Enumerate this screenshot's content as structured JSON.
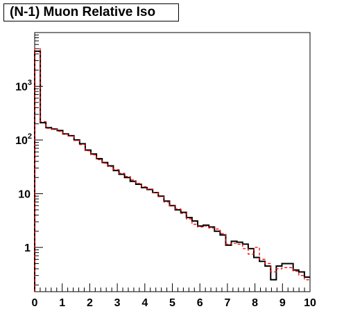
{
  "title": "(N-1) Muon Relative Iso",
  "chart_data": {
    "type": "line",
    "title": "(N-1) Muon Relative Iso",
    "xlabel": "",
    "ylabel": "",
    "xlim": [
      0,
      10
    ],
    "ylim": [
      0.15,
      10000
    ],
    "y_scale": "log",
    "grid": false,
    "x_ticks": [
      {
        "value": 0,
        "label": "0"
      },
      {
        "value": 1,
        "label": "1"
      },
      {
        "value": 2,
        "label": "2"
      },
      {
        "value": 3,
        "label": "3"
      },
      {
        "value": 4,
        "label": "4"
      },
      {
        "value": 5,
        "label": "5"
      },
      {
        "value": 6,
        "label": "6"
      },
      {
        "value": 7,
        "label": "7"
      },
      {
        "value": 8,
        "label": "8"
      },
      {
        "value": 9,
        "label": "9"
      },
      {
        "value": 10,
        "label": "10"
      }
    ],
    "y_ticks": [
      {
        "value": 1,
        "base": "1",
        "exp": ""
      },
      {
        "value": 10,
        "base": "10",
        "exp": ""
      },
      {
        "value": 100,
        "base": "10",
        "exp": "2"
      },
      {
        "value": 1000,
        "base": "10",
        "exp": "3"
      }
    ],
    "series": [
      {
        "style": "solid",
        "color": "#000000",
        "values": [
          4500,
          210,
          170,
          160,
          150,
          130,
          120,
          100,
          85,
          65,
          55,
          45,
          38,
          33,
          27,
          23,
          20,
          17,
          15,
          13,
          12,
          10.5,
          9,
          7.3,
          6,
          5,
          4.5,
          3.6,
          3.1,
          2.5,
          2.6,
          2.4,
          2.0,
          1.7,
          1.1,
          1.3,
          1.25,
          1.15,
          0.95,
          0.65,
          0.55,
          0.45,
          0.25,
          0.45,
          0.5,
          0.5,
          0.38,
          0.35,
          0.28
        ]
      },
      {
        "style": "dashed",
        "color": "#ff0000",
        "values": [
          5000,
          220,
          165,
          158,
          145,
          128,
          118,
          98,
          82,
          63,
          53,
          43,
          37,
          32,
          28,
          24,
          21,
          18,
          15.5,
          13.5,
          12.2,
          10.4,
          8.8,
          7.0,
          5.9,
          5.2,
          4.3,
          3.4,
          2.7,
          2.4,
          2.5,
          2.3,
          2.2,
          1.8,
          1.15,
          1.2,
          1.15,
          0.95,
          0.75,
          1.0,
          0.6,
          0.5,
          0.35,
          0.4,
          0.42,
          0.42,
          0.36,
          0.3,
          0.25
        ]
      }
    ]
  }
}
